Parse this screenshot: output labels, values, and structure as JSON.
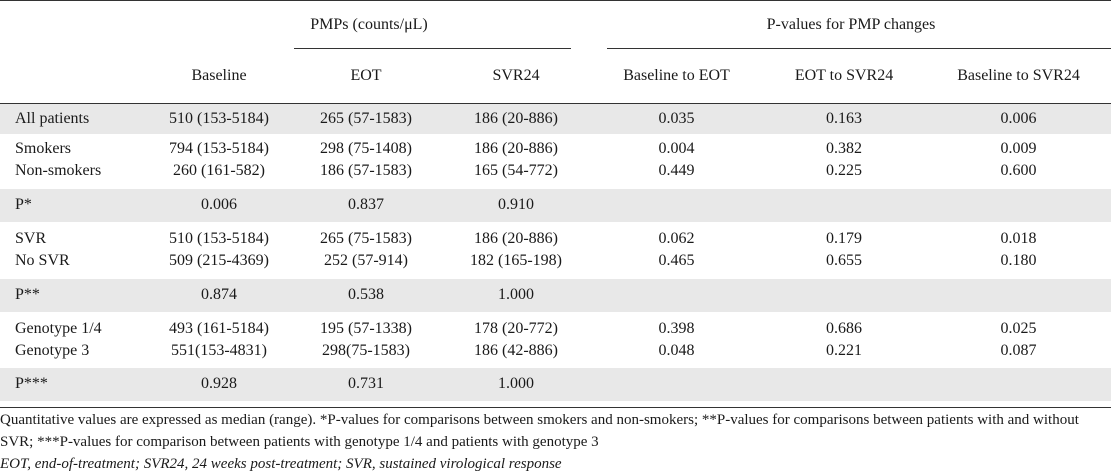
{
  "header": {
    "group_pmps": "PMPs (counts/μL)",
    "group_pvalues": "P-values for PMP changes",
    "columns": [
      "Baseline",
      "EOT",
      "SVR24",
      "Baseline to EOT",
      "EOT to SVR24",
      "Baseline to SVR24"
    ]
  },
  "rows": [
    {
      "label": "All patients",
      "values": [
        "510 (153-5184)",
        "265 (57-1583)",
        "186 (20-886)",
        "0.035",
        "0.163",
        "0.006"
      ]
    },
    {
      "label": "Smokers",
      "values": [
        "794 (153-5184)",
        "298 (75-1408)",
        "186 (20-886)",
        "0.004",
        "0.382",
        "0.009"
      ]
    },
    {
      "label": "Non-smokers",
      "values": [
        "260 (161-582)",
        "186 (57-1583)",
        "165 (54-772)",
        "0.449",
        "0.225",
        "0.600"
      ]
    },
    {
      "label": "P*",
      "values": [
        "0.006",
        "0.837",
        "0.910",
        "",
        "",
        ""
      ]
    },
    {
      "label": "SVR",
      "values": [
        "510 (153-5184)",
        "265 (75-1583)",
        "186 (20-886)",
        "0.062",
        "0.179",
        "0.018"
      ]
    },
    {
      "label": "No SVR",
      "values": [
        "509 (215-4369)",
        "252 (57-914)",
        "182 (165-198)",
        "0.465",
        "0.655",
        "0.180"
      ]
    },
    {
      "label": "P**",
      "values": [
        "0.874",
        "0.538",
        "1.000",
        "",
        "",
        ""
      ]
    },
    {
      "label": "Genotype 1/4",
      "values": [
        "493 (161-5184)",
        "195 (57-1338)",
        "178 (20-772)",
        "0.398",
        "0.686",
        "0.025"
      ]
    },
    {
      "label": "Genotype 3",
      "values": [
        "551(153-4831)",
        "298(75-1583)",
        "186 (42-886)",
        "0.048",
        "0.221",
        "0.087"
      ]
    },
    {
      "label": "P***",
      "values": [
        "0.928",
        "0.731",
        "1.000",
        "",
        "",
        ""
      ]
    }
  ],
  "footnotes": {
    "note1": "Quantitative values are expressed as median (range). *P-values for comparisons between smokers and non-smokers; **P-values for comparisons between patients with and without SVR; ***P-values for comparison between patients with genotype 1/4 and patients with genotype 3",
    "note2": "EOT, end-of-treatment; SVR24, 24 weeks post-treatment; SVR, sustained virological response"
  },
  "colors": {
    "shade": "#e8e8e8",
    "rule": "#333333"
  }
}
